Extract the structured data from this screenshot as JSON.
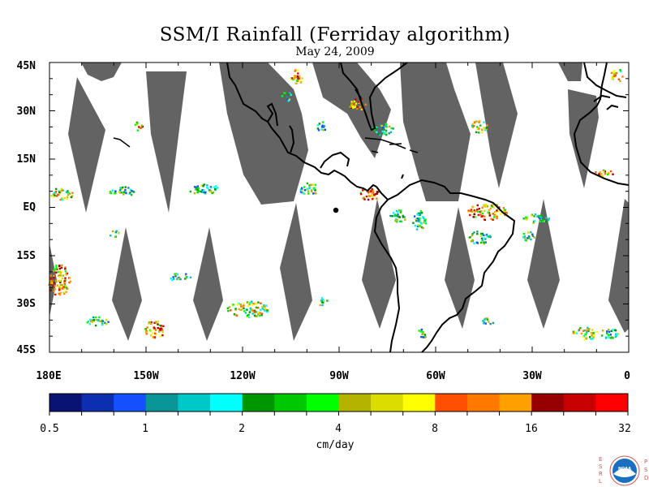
{
  "header": {
    "title": "SSM/I Rainfall (Ferriday algorithm)",
    "date": "May 24, 2009"
  },
  "map": {
    "lat_labels": [
      "45N",
      "30N",
      "15N",
      "EQ",
      "15S",
      "30S",
      "45S"
    ],
    "lon_labels": [
      "180E",
      "150W",
      "120W",
      "90W",
      "60W",
      "30W",
      "0"
    ],
    "lat_range": [
      -45,
      45
    ],
    "lon_range": [
      -180,
      0
    ],
    "no_data_color": "#636363",
    "coastline_color": "#000000"
  },
  "colorbar": {
    "colors": [
      "#0a1273",
      "#0b2fb0",
      "#1550ff",
      "#0a9696",
      "#00c8c8",
      "#00ffff",
      "#009600",
      "#00c800",
      "#00ff00",
      "#b4b400",
      "#dcdc00",
      "#ffff00",
      "#ff5000",
      "#ff7800",
      "#ffa000",
      "#960000",
      "#c80000",
      "#ff0000"
    ],
    "labels": [
      "0.5",
      "1",
      "2",
      "4",
      "8",
      "16",
      "32"
    ],
    "unit": "cm/day"
  },
  "logo": {
    "left_letters": "ESRL",
    "right_letters": "PSD",
    "center_text": "NOAA"
  }
}
